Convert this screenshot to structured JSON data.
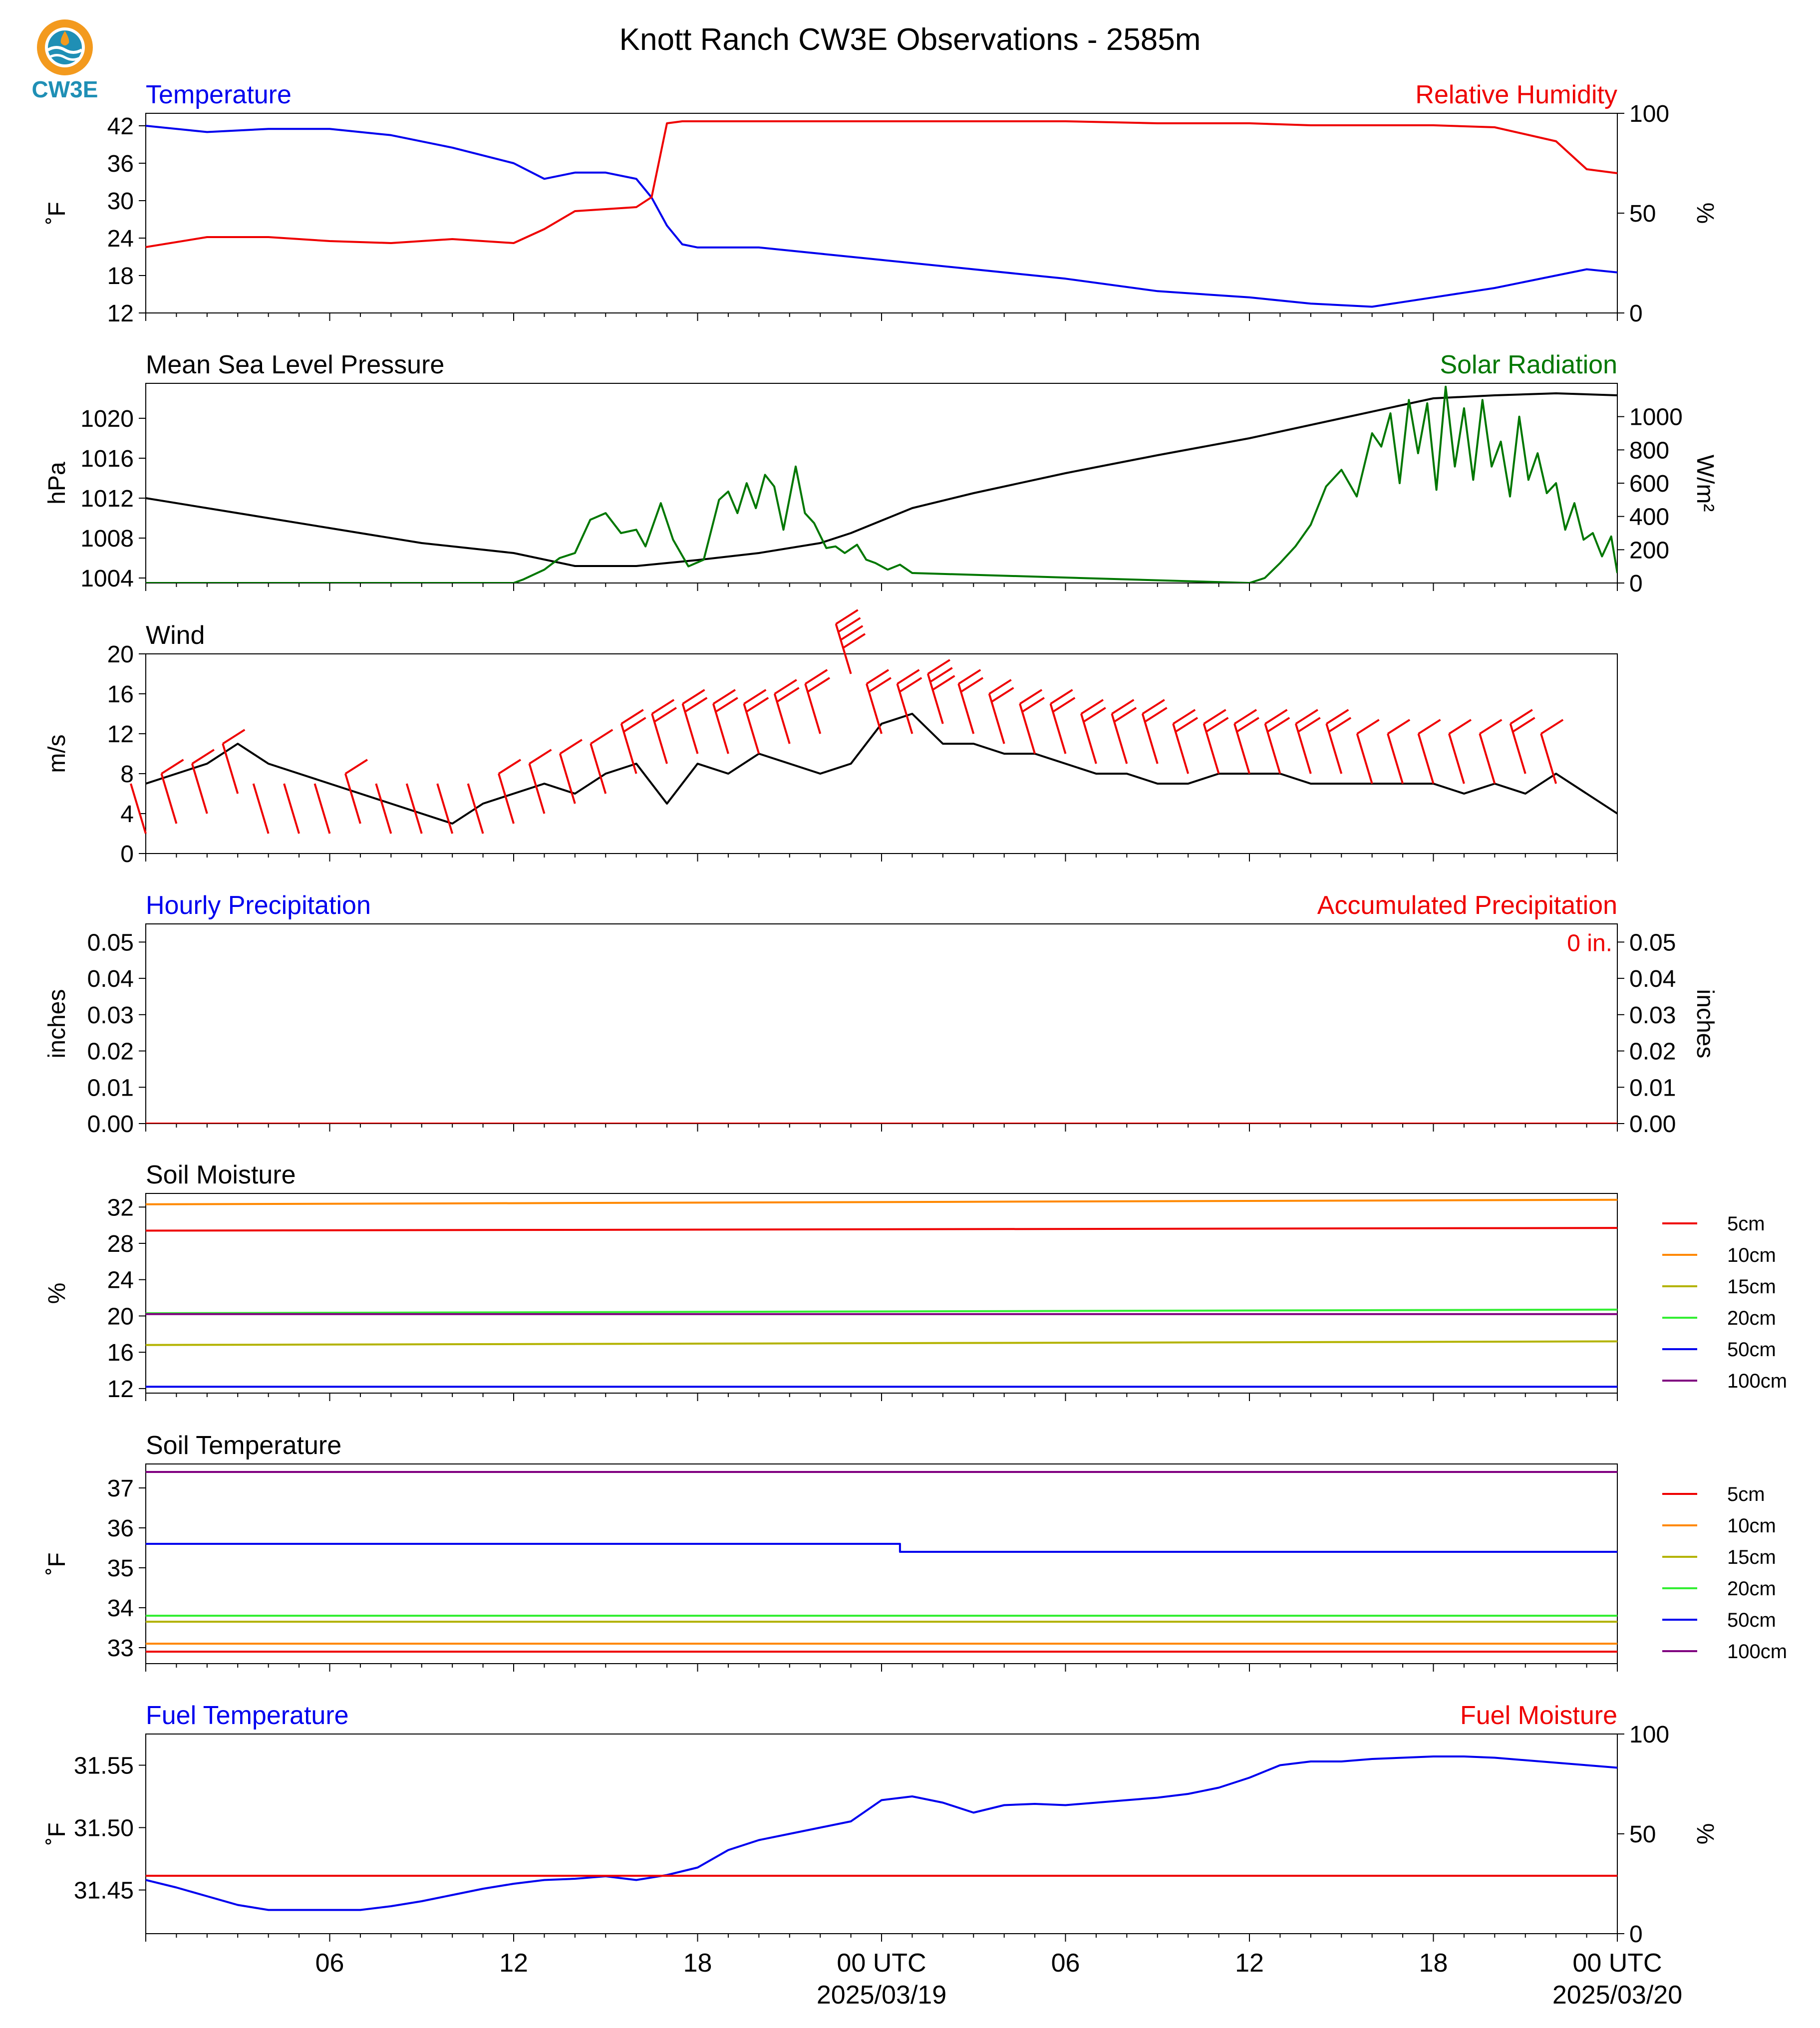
{
  "title": "Knott Ranch CW3E Observations - 2585m",
  "logo": {
    "text": "CW3E",
    "colors": {
      "orange": "#f39a1e",
      "teal": "#1f8fb5",
      "navy": "#1a5f8c"
    }
  },
  "colors": {
    "blue": "#0000ee",
    "red": "#ee0000",
    "green": "#007700",
    "black": "#000000",
    "orange": "#ff8800",
    "olive": "#b3b300",
    "lime": "#33ee33",
    "purple": "#800080"
  },
  "x_axis": {
    "tick_labels": [
      {
        "t": 6,
        "line1": "06",
        "line2": ""
      },
      {
        "t": 12,
        "line1": "12",
        "line2": ""
      },
      {
        "t": 18,
        "line1": "18",
        "line2": ""
      },
      {
        "t": 24,
        "line1": "00 UTC",
        "line2": "2025/03/19"
      },
      {
        "t": 30,
        "line1": "06",
        "line2": ""
      },
      {
        "t": 36,
        "line1": "12",
        "line2": ""
      },
      {
        "t": 42,
        "line1": "18",
        "line2": ""
      },
      {
        "t": 48,
        "line1": "00 UTC",
        "line2": "2025/03/20"
      }
    ]
  },
  "chart_data": [
    {
      "type": "line",
      "title_left": "Temperature",
      "title_right": "Relative Humidity",
      "ylabel_left": "˚F",
      "ylabel_right": "%",
      "ylim_left": [
        12,
        44
      ],
      "ylim_right": [
        0,
        100
      ],
      "yticks_left": [
        12,
        18,
        24,
        30,
        36,
        42
      ],
      "yticks_right": [
        0,
        50,
        100
      ],
      "series": [
        {
          "axis": "left",
          "color": "blue",
          "x": [
            0,
            2,
            4,
            6,
            8,
            10,
            12,
            13,
            14,
            15,
            16,
            16.5,
            17,
            17.5,
            18,
            20,
            22,
            24,
            27,
            30,
            33,
            36,
            38,
            40,
            42,
            44,
            46,
            47,
            48
          ],
          "y": [
            42,
            41,
            41.5,
            41.5,
            40.5,
            38.5,
            36,
            33.5,
            34.5,
            34.5,
            33.5,
            30.5,
            26,
            23,
            22.5,
            22.5,
            21.5,
            20.5,
            19,
            17.5,
            15.5,
            14.5,
            13.5,
            13,
            14.5,
            16,
            18,
            19,
            18.5
          ]
        },
        {
          "axis": "right",
          "color": "red",
          "x": [
            0,
            2,
            4,
            6,
            8,
            10,
            12,
            13,
            14,
            15,
            16,
            16.5,
            17,
            17.5,
            18,
            20,
            22,
            24,
            27,
            30,
            33,
            36,
            38,
            40,
            42,
            44,
            46,
            47,
            48
          ],
          "y": [
            33,
            38,
            38,
            36,
            35,
            37,
            35,
            42,
            51,
            52,
            53,
            58,
            95,
            96,
            96,
            96,
            96,
            96,
            96,
            96,
            95,
            95,
            94,
            94,
            94,
            93,
            86,
            72,
            70
          ]
        }
      ]
    },
    {
      "type": "line",
      "title_left": "Mean Sea Level Pressure",
      "title_right": "Solar Radiation",
      "ylabel_left": "hPa",
      "ylabel_right": "W/m²",
      "ylim_left": [
        1003.5,
        1023.5
      ],
      "ylim_right": [
        0,
        1200
      ],
      "yticks_left": [
        1004,
        1008,
        1012,
        1016,
        1020
      ],
      "yticks_right": [
        0,
        200,
        400,
        600,
        800,
        1000
      ],
      "series": [
        {
          "axis": "left",
          "color": "black",
          "x": [
            0,
            3,
            6,
            9,
            12,
            14,
            16,
            18,
            20,
            22,
            23,
            25,
            27,
            30,
            33,
            36,
            39,
            42,
            44,
            46,
            48
          ],
          "y": [
            1012,
            1010.5,
            1009,
            1007.5,
            1006.5,
            1005.2,
            1005.2,
            1005.8,
            1006.5,
            1007.5,
            1008.5,
            1011,
            1012.5,
            1014.5,
            1016.3,
            1018,
            1020,
            1022,
            1022.3,
            1022.5,
            1022.3
          ]
        },
        {
          "axis": "right",
          "color": "green",
          "x": [
            0,
            12,
            12.3,
            13,
            13.5,
            14,
            14.5,
            15,
            15.5,
            16,
            16.3,
            16.8,
            17.2,
            17.7,
            18.2,
            18.7,
            19,
            19.3,
            19.6,
            19.9,
            20.2,
            20.5,
            20.8,
            21.2,
            21.5,
            21.8,
            22.2,
            22.5,
            22.8,
            23.2,
            23.5,
            23.8,
            24.2,
            24.6,
            25,
            36,
            36.5,
            37,
            37.5,
            38,
            38.5,
            39,
            39.5,
            40,
            40.3,
            40.6,
            40.9,
            41.2,
            41.5,
            41.8,
            42.1,
            42.4,
            42.7,
            43,
            43.3,
            43.6,
            43.9,
            44.2,
            44.5,
            44.8,
            45.1,
            45.4,
            45.7,
            46,
            46.3,
            46.6,
            46.9,
            47.2,
            47.5,
            47.8,
            48
          ],
          "y": [
            0,
            0,
            20,
            80,
            150,
            180,
            380,
            420,
            300,
            320,
            220,
            480,
            260,
            100,
            140,
            500,
            550,
            420,
            600,
            450,
            650,
            580,
            320,
            700,
            420,
            360,
            210,
            220,
            180,
            230,
            140,
            120,
            80,
            110,
            60,
            0,
            30,
            120,
            220,
            350,
            580,
            680,
            520,
            900,
            820,
            1020,
            600,
            1100,
            780,
            1080,
            560,
            1180,
            700,
            1050,
            620,
            1100,
            700,
            850,
            520,
            1000,
            620,
            780,
            540,
            600,
            320,
            480,
            260,
            300,
            160,
            280,
            60
          ]
        }
      ]
    },
    {
      "type": "line",
      "title_left": "Wind",
      "ylabel_left": "m/s",
      "ylim_left": [
        0,
        20
      ],
      "yticks_left": [
        0,
        4,
        8,
        12,
        16,
        20
      ],
      "series": [
        {
          "axis": "left",
          "color": "black",
          "x": [
            0,
            1,
            2,
            3,
            4,
            5,
            6,
            7,
            8,
            9,
            10,
            11,
            12,
            13,
            14,
            15,
            16,
            17,
            18,
            19,
            20,
            21,
            22,
            23,
            24,
            25,
            26,
            27,
            28,
            29,
            30,
            31,
            32,
            33,
            34,
            35,
            36,
            37,
            38,
            39,
            40,
            41,
            42,
            43,
            44,
            45,
            46,
            47,
            48
          ],
          "y": [
            7,
            8,
            9,
            11,
            9,
            8,
            7,
            6,
            5,
            4,
            3,
            5,
            6,
            7,
            6,
            8,
            9,
            5,
            9,
            8,
            10,
            9,
            8,
            9,
            13,
            14,
            11,
            11,
            10,
            10,
            9,
            8,
            8,
            7,
            7,
            8,
            8,
            8,
            7,
            7,
            7,
            7,
            7,
            6,
            7,
            6,
            8,
            6,
            4
          ]
        }
      ],
      "barbs": [
        {
          "t": 0,
          "ws": 2
        },
        {
          "t": 1,
          "ws": 3
        },
        {
          "t": 2,
          "ws": 4
        },
        {
          "t": 3,
          "ws": 6
        },
        {
          "t": 4,
          "ws": 2
        },
        {
          "t": 5,
          "ws": 2
        },
        {
          "t": 6,
          "ws": 2
        },
        {
          "t": 7,
          "ws": 3
        },
        {
          "t": 8,
          "ws": 2
        },
        {
          "t": 9,
          "ws": 2
        },
        {
          "t": 10,
          "ws": 2
        },
        {
          "t": 11,
          "ws": 2
        },
        {
          "t": 12,
          "ws": 3
        },
        {
          "t": 13,
          "ws": 4
        },
        {
          "t": 14,
          "ws": 5
        },
        {
          "t": 15,
          "ws": 6
        },
        {
          "t": 16,
          "ws": 8
        },
        {
          "t": 17,
          "ws": 9
        },
        {
          "t": 18,
          "ws": 10
        },
        {
          "t": 19,
          "ws": 10
        },
        {
          "t": 20,
          "ws": 10
        },
        {
          "t": 21,
          "ws": 11
        },
        {
          "t": 22,
          "ws": 12
        },
        {
          "t": 23,
          "ws": 18
        },
        {
          "t": 24,
          "ws": 12
        },
        {
          "t": 25,
          "ws": 12
        },
        {
          "t": 26,
          "ws": 13
        },
        {
          "t": 27,
          "ws": 12
        },
        {
          "t": 28,
          "ws": 11
        },
        {
          "t": 29,
          "ws": 10
        },
        {
          "t": 30,
          "ws": 10
        },
        {
          "t": 31,
          "ws": 9
        },
        {
          "t": 32,
          "ws": 9
        },
        {
          "t": 33,
          "ws": 9
        },
        {
          "t": 34,
          "ws": 8
        },
        {
          "t": 35,
          "ws": 8
        },
        {
          "t": 36,
          "ws": 8
        },
        {
          "t": 37,
          "ws": 8
        },
        {
          "t": 38,
          "ws": 8
        },
        {
          "t": 39,
          "ws": 8
        },
        {
          "t": 40,
          "ws": 7
        },
        {
          "t": 41,
          "ws": 7
        },
        {
          "t": 42,
          "ws": 7
        },
        {
          "t": 43,
          "ws": 7
        },
        {
          "t": 44,
          "ws": 7
        },
        {
          "t": 45,
          "ws": 8
        },
        {
          "t": 46,
          "ws": 7
        }
      ]
    },
    {
      "type": "line",
      "title_left": "Hourly Precipitation",
      "title_right": "Accumulated Precipitation",
      "ylabel_left": "inches",
      "ylabel_right": "inches",
      "ylim_left": [
        0,
        0.055
      ],
      "ylim_right": [
        0,
        0.055
      ],
      "yticks_left": [
        0.0,
        0.01,
        0.02,
        0.03,
        0.04,
        0.05
      ],
      "yticks_right": [
        0.0,
        0.01,
        0.02,
        0.03,
        0.04,
        0.05
      ],
      "annotation": "0 in.",
      "series": [
        {
          "axis": "left",
          "color": "blue",
          "x": [
            0,
            48
          ],
          "y": [
            0,
            0
          ]
        },
        {
          "axis": "right",
          "color": "red",
          "x": [
            0,
            48
          ],
          "y": [
            0,
            0
          ]
        }
      ]
    },
    {
      "type": "line",
      "title_left": "Soil Moisture",
      "ylabel_left": "%",
      "ylim_left": [
        11.5,
        33.5
      ],
      "yticks_left": [
        12,
        16,
        20,
        24,
        28,
        32
      ],
      "legend": [
        "5cm",
        "10cm",
        "15cm",
        "20cm",
        "50cm",
        "100cm"
      ],
      "series": [
        {
          "name": "5cm",
          "color": "red",
          "x": [
            0,
            48
          ],
          "y": [
            29.4,
            29.7
          ]
        },
        {
          "name": "10cm",
          "color": "orange",
          "x": [
            0,
            48
          ],
          "y": [
            32.3,
            32.8
          ]
        },
        {
          "name": "15cm",
          "color": "olive",
          "x": [
            0,
            48
          ],
          "y": [
            16.8,
            17.2
          ]
        },
        {
          "name": "20cm",
          "color": "lime",
          "x": [
            0,
            48
          ],
          "y": [
            20.3,
            20.7
          ]
        },
        {
          "name": "50cm",
          "color": "blue",
          "x": [
            0,
            48
          ],
          "y": [
            12.2,
            12.2
          ]
        },
        {
          "name": "100cm",
          "color": "purple",
          "x": [
            0,
            48
          ],
          "y": [
            20.2,
            20.2
          ]
        }
      ]
    },
    {
      "type": "line",
      "title_left": "Soil Temperature",
      "ylabel_left": "˚F",
      "ylim_left": [
        32.6,
        37.6
      ],
      "yticks_left": [
        33,
        34,
        35,
        36,
        37
      ],
      "legend": [
        "5cm",
        "10cm",
        "15cm",
        "20cm",
        "50cm",
        "100cm"
      ],
      "series": [
        {
          "name": "5cm",
          "color": "red",
          "x": [
            0,
            48
          ],
          "y": [
            32.9,
            32.9
          ]
        },
        {
          "name": "10cm",
          "color": "orange",
          "x": [
            0,
            48
          ],
          "y": [
            33.1,
            33.1
          ]
        },
        {
          "name": "15cm",
          "color": "olive",
          "x": [
            0,
            48
          ],
          "y": [
            33.65,
            33.65
          ]
        },
        {
          "name": "20cm",
          "color": "lime",
          "x": [
            0,
            48
          ],
          "y": [
            33.8,
            33.8
          ]
        },
        {
          "name": "50cm",
          "color": "blue",
          "x": [
            0,
            24.6,
            24.6,
            48
          ],
          "y": [
            35.6,
            35.6,
            35.4,
            35.4
          ]
        },
        {
          "name": "100cm",
          "color": "purple",
          "x": [
            0,
            48
          ],
          "y": [
            37.4,
            37.4
          ]
        }
      ]
    },
    {
      "type": "line",
      "title_left": "Fuel Temperature",
      "title_right": "Fuel Moisture",
      "ylabel_left": "˚F",
      "ylabel_right": "%",
      "ylim_left": [
        31.415,
        31.575
      ],
      "ylim_right": [
        0,
        100
      ],
      "yticks_left": [
        31.45,
        31.5,
        31.55
      ],
      "yticks_right": [
        0,
        50,
        100
      ],
      "series": [
        {
          "axis": "left",
          "color": "blue",
          "x": [
            0,
            1,
            2,
            3,
            4,
            5,
            6,
            7,
            8,
            9,
            10,
            11,
            12,
            13,
            14,
            15,
            16,
            17,
            18,
            19,
            20,
            21,
            22,
            23,
            24,
            25,
            26,
            27,
            28,
            29,
            30,
            31,
            32,
            33,
            34,
            35,
            36,
            37,
            38,
            39,
            40,
            41,
            42,
            43,
            44,
            45,
            46,
            47,
            48
          ],
          "y": [
            31.458,
            31.452,
            31.445,
            31.438,
            31.434,
            31.434,
            31.434,
            31.434,
            31.437,
            31.441,
            31.446,
            31.451,
            31.455,
            31.458,
            31.459,
            31.461,
            31.458,
            31.462,
            31.468,
            31.482,
            31.49,
            31.495,
            31.5,
            31.505,
            31.522,
            31.525,
            31.52,
            31.512,
            31.518,
            31.519,
            31.518,
            31.52,
            31.522,
            31.524,
            31.527,
            31.532,
            31.54,
            31.55,
            31.553,
            31.553,
            31.555,
            31.556,
            31.557,
            31.557,
            31.556,
            31.554,
            31.552,
            31.55,
            31.548
          ]
        },
        {
          "axis": "right",
          "color": "red",
          "x": [
            0,
            48
          ],
          "y": [
            29,
            29
          ]
        }
      ]
    }
  ]
}
